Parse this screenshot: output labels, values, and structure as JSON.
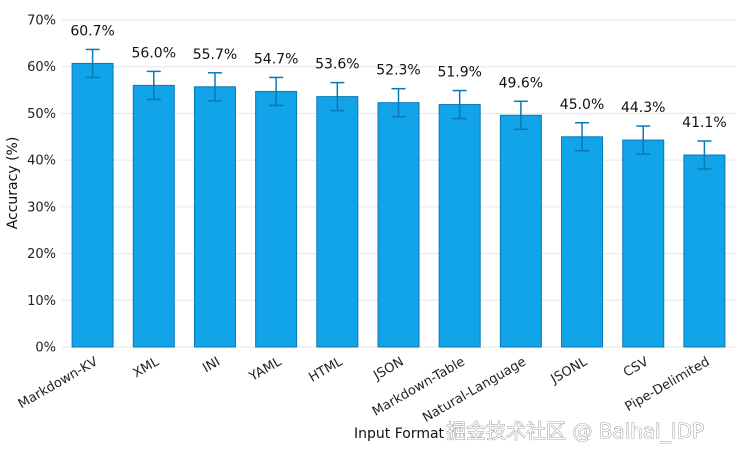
{
  "chart_data": {
    "type": "bar",
    "title": "",
    "xlabel": "Input Format",
    "ylabel": "Accuracy (%)",
    "ylim": [
      0,
      70
    ],
    "yticks": [
      0,
      10,
      20,
      30,
      40,
      50,
      60,
      70
    ],
    "ytick_suffix": "%",
    "grid": true,
    "categories": [
      "Markdown-KV",
      "XML",
      "INI",
      "YAML",
      "HTML",
      "JSON",
      "Markdown-Table",
      "Natural-Language",
      "JSONL",
      "CSV",
      "Pipe-Delimited"
    ],
    "values": [
      60.7,
      56.0,
      55.7,
      54.7,
      53.6,
      52.3,
      51.9,
      49.6,
      45.0,
      44.3,
      41.1
    ],
    "data_labels": [
      "60.7%",
      "56.0%",
      "55.7%",
      "54.7%",
      "53.6%",
      "52.3%",
      "51.9%",
      "49.6%",
      "45.0%",
      "44.3%",
      "41.1%"
    ],
    "error": [
      3.0,
      3.0,
      3.0,
      3.0,
      3.0,
      3.0,
      3.0,
      3.0,
      3.0,
      3.0,
      3.0
    ],
    "bar_color": "#12a4e8",
    "bar_edge_color": "#0a78b4",
    "error_color": "#0a78b4"
  },
  "watermark": "掘金技术社区 @ Baihai_IDP"
}
